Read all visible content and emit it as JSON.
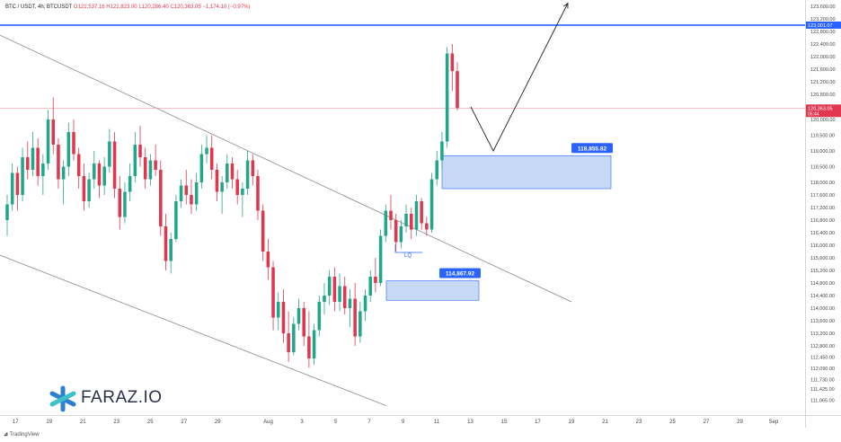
{
  "header": {
    "symbol": "BTC / USDT, 4h, BTCUSDT",
    "ohlc": "O121,537.16 H121,823.00 L120,286.40 C120,363.05 −1,174.10 (−0.97%)"
  },
  "footer": {
    "brand": "TradingView"
  },
  "logo": {
    "text": "FARAZ.IO",
    "icon": "asterisk-logo-icon",
    "color": "#2e7fd0"
  },
  "colors": {
    "bull": "#22a68a",
    "bear": "#e0364e",
    "resistance_line": "#2962ff",
    "price_line": "#f29aa5",
    "zone_fill": "#a7c4f2",
    "zone_border": "#2962ff",
    "channel": "#8c8c8c",
    "label_bg": "#2962ff"
  },
  "chart_data": {
    "type": "candlestick",
    "timeframe": "4h",
    "y_axis": {
      "min": 110600,
      "max": 123800,
      "ticks": [
        "123,600.00",
        "123,200.00",
        "122,800.00",
        "122,400.00",
        "122,000.00",
        "121,600.00",
        "121,200.00",
        "120,800.00",
        "120,400.00",
        "120,000.00",
        "119,500.00",
        "119,000.00",
        "118,500.00",
        "118,000.00",
        "117,600.00",
        "117,200.00",
        "116,800.00",
        "116,400.00",
        "116,000.00",
        "115,600.00",
        "115,200.00",
        "114,800.00",
        "114,400.00",
        "114,000.00",
        "113,600.00",
        "113,200.00",
        "112,800.00",
        "112,450.00",
        "112,090.00",
        "111,730.00",
        "111,425.00",
        "111,065.00"
      ]
    },
    "x_axis": {
      "ticks": [
        "17",
        "19",
        "21",
        "23",
        "25",
        "27",
        "29",
        "Aug",
        "3",
        "5",
        "7",
        "9",
        "11",
        "13",
        "15",
        "17",
        "19",
        "21",
        "23",
        "25",
        "27",
        "29",
        "Sep"
      ]
    },
    "levels": {
      "resistance": {
        "value": 123001.07,
        "label": "123,001.07"
      },
      "current_price": {
        "value": 120363.05,
        "label": "120,363.05",
        "countdown": "05:44"
      }
    },
    "zones": [
      {
        "name": "upper-demand",
        "from_date": "Aug 10",
        "low": 117800,
        "high": 118850,
        "label": "118,855.82"
      },
      {
        "name": "lower-demand",
        "from_date": "Aug 7",
        "low": 114250,
        "high": 114870,
        "label": "114,867.92"
      }
    ],
    "annotations": [
      {
        "text": "LQ"
      }
    ],
    "channel": {
      "upper": [
        [
          "Jul 16",
          122700
        ],
        [
          "Aug 19",
          114200
        ]
      ],
      "lower": [
        [
          "Jul 16",
          115700
        ],
        [
          "Aug 8",
          110900
        ]
      ]
    },
    "projection": [
      [
        "Aug 11",
        120400
      ],
      [
        "Aug 13",
        119000
      ],
      [
        "Aug 18",
        123700
      ]
    ],
    "candles": [
      [
        116800,
        117600,
        116300,
        117300
      ],
      [
        117300,
        118600,
        117100,
        118300
      ],
      [
        118300,
        118500,
        117100,
        117600
      ],
      [
        117600,
        119100,
        117400,
        118800
      ],
      [
        118800,
        119300,
        118100,
        118400
      ],
      [
        118400,
        119600,
        118200,
        119100
      ],
      [
        119100,
        119400,
        117900,
        118200
      ],
      [
        118200,
        118900,
        117600,
        118600
      ],
      [
        118600,
        120300,
        118400,
        120000
      ],
      [
        120000,
        120700,
        118900,
        119200
      ],
      [
        119200,
        119400,
        117800,
        118100
      ],
      [
        118100,
        118700,
        117300,
        118500
      ],
      [
        118500,
        119900,
        118200,
        119600
      ],
      [
        119600,
        120000,
        118700,
        118900
      ],
      [
        118900,
        119100,
        117800,
        118200
      ],
      [
        118200,
        118600,
        117100,
        117400
      ],
      [
        117400,
        118300,
        117200,
        118100
      ],
      [
        118100,
        119000,
        117800,
        118600
      ],
      [
        118600,
        118700,
        117500,
        117900
      ],
      [
        117900,
        118800,
        117600,
        118500
      ],
      [
        118500,
        119700,
        118300,
        119300
      ],
      [
        119300,
        119600,
        117500,
        117800
      ],
      [
        117800,
        118200,
        116500,
        116900
      ],
      [
        116900,
        118000,
        116700,
        117700
      ],
      [
        117700,
        118600,
        117400,
        118200
      ],
      [
        118200,
        119600,
        118000,
        119200
      ],
      [
        119200,
        119800,
        118500,
        118800
      ],
      [
        118800,
        119100,
        117800,
        118100
      ],
      [
        118100,
        118900,
        117900,
        118700
      ],
      [
        118700,
        119200,
        118200,
        118400
      ],
      [
        118400,
        118700,
        116300,
        116600
      ],
      [
        116600,
        117000,
        115200,
        115500
      ],
      [
        115500,
        116400,
        115100,
        116200
      ],
      [
        116200,
        117600,
        116100,
        117400
      ],
      [
        117400,
        118100,
        117200,
        117900
      ],
      [
        117900,
        118400,
        117300,
        117600
      ],
      [
        117600,
        118100,
        117000,
        117300
      ],
      [
        117300,
        118300,
        117100,
        118000
      ],
      [
        118000,
        119200,
        117800,
        118900
      ],
      [
        118900,
        119500,
        118600,
        119100
      ],
      [
        119100,
        119500,
        118100,
        118400
      ],
      [
        118400,
        118600,
        117400,
        117700
      ],
      [
        117700,
        118200,
        117000,
        118000
      ],
      [
        118000,
        118900,
        117800,
        118600
      ],
      [
        118600,
        118800,
        117800,
        118100
      ],
      [
        118100,
        118400,
        117300,
        117600
      ],
      [
        117600,
        118000,
        116900,
        117800
      ],
      [
        117800,
        119000,
        117600,
        118700
      ],
      [
        118700,
        118900,
        117900,
        118200
      ],
      [
        118200,
        118400,
        116800,
        117100
      ],
      [
        117100,
        117300,
        115500,
        115800
      ],
      [
        115800,
        116200,
        114900,
        115300
      ],
      [
        115300,
        115500,
        113300,
        113700
      ],
      [
        113700,
        114500,
        113300,
        114200
      ],
      [
        114200,
        114600,
        112900,
        113200
      ],
      [
        113200,
        113900,
        112300,
        112600
      ],
      [
        112600,
        113700,
        112500,
        113500
      ],
      [
        113500,
        114300,
        113300,
        114000
      ],
      [
        114000,
        114200,
        112800,
        113100
      ],
      [
        113100,
        113900,
        112100,
        112400
      ],
      [
        112400,
        113500,
        112200,
        113300
      ],
      [
        113300,
        114400,
        113100,
        114200
      ],
      [
        114200,
        114800,
        113800,
        114400
      ],
      [
        114400,
        115200,
        114100,
        115000
      ],
      [
        115000,
        115300,
        113900,
        114200
      ],
      [
        114200,
        115100,
        113900,
        114700
      ],
      [
        114700,
        115000,
        113800,
        114000
      ],
      [
        114000,
        114600,
        113400,
        114300
      ],
      [
        114300,
        114800,
        112800,
        113100
      ],
      [
        113100,
        114200,
        112900,
        113900
      ],
      [
        113900,
        114600,
        113600,
        114400
      ],
      [
        114400,
        115200,
        114200,
        115000
      ],
      [
        115000,
        115600,
        114500,
        114800
      ],
      [
        114800,
        116500,
        114700,
        116300
      ],
      [
        116300,
        117300,
        116100,
        117100
      ],
      [
        117100,
        117600,
        116500,
        116800
      ],
      [
        116800,
        117000,
        115800,
        116100
      ],
      [
        116100,
        116800,
        115900,
        116600
      ],
      [
        116600,
        117300,
        116400,
        117000
      ],
      [
        117000,
        117200,
        116200,
        116500
      ],
      [
        116500,
        117600,
        116300,
        117400
      ],
      [
        117400,
        117500,
        116500,
        116700
      ],
      [
        116700,
        116900,
        116300,
        116500
      ],
      [
        116500,
        118300,
        116400,
        118100
      ],
      [
        118100,
        119000,
        117900,
        118700
      ],
      [
        118700,
        119600,
        118400,
        119300
      ],
      [
        119300,
        122300,
        119100,
        122100
      ],
      [
        122100,
        122400,
        120900,
        121537
      ],
      [
        121537,
        121823,
        120286,
        120363
      ]
    ]
  }
}
